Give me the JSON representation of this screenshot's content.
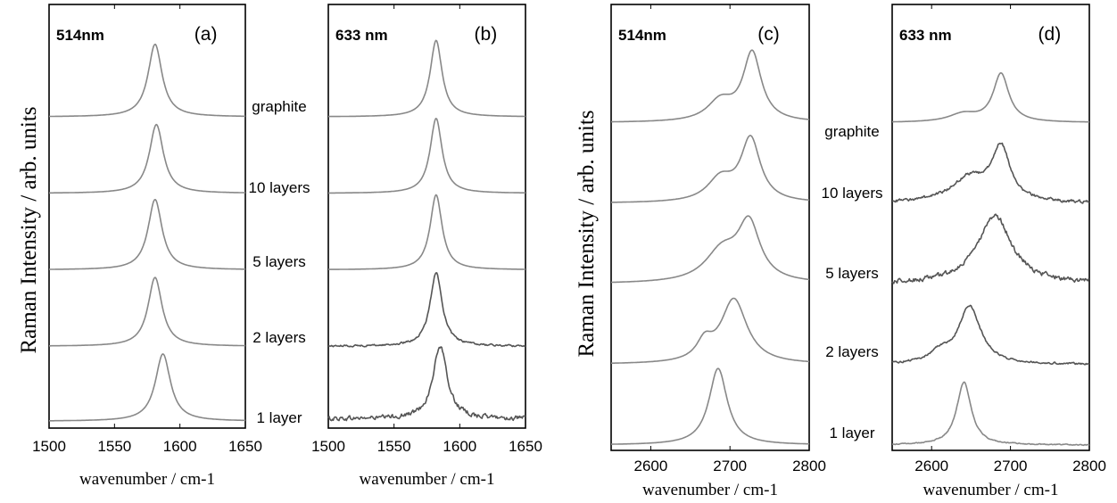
{
  "chart_data": [
    {
      "type": "line",
      "panel_label": "(a)",
      "laser": "514nm",
      "xlabel": "wavenumber / cm-1",
      "ylabel": "Raman Intensity / arb. units",
      "xlim": [
        1500,
        1650
      ],
      "xticks": [
        "1500",
        "1550",
        "1600",
        "1650"
      ],
      "ylim": [
        0,
        5.4
      ],
      "grid": false,
      "stack_offset": 1.0,
      "series": [
        {
          "name": "1 layer",
          "offset": 0,
          "peaks": [
            {
              "center": 1587,
              "height": 0.88,
              "width": 7
            }
          ],
          "baseline": 0.02,
          "noise": 0
        },
        {
          "name": "2 layers",
          "offset": 1,
          "peaks": [
            {
              "center": 1581,
              "height": 0.9,
              "width": 6.5
            }
          ],
          "baseline": 0.0,
          "noise": 0
        },
        {
          "name": "5 layers",
          "offset": 2,
          "peaks": [
            {
              "center": 1581,
              "height": 0.92,
              "width": 6.5
            }
          ],
          "baseline": 0.0,
          "noise": 0
        },
        {
          "name": "10 layers",
          "offset": 3,
          "peaks": [
            {
              "center": 1582,
              "height": 0.9,
              "width": 6.5
            }
          ],
          "baseline": 0.0,
          "noise": 0
        },
        {
          "name": "graphite",
          "offset": 4,
          "peaks": [
            {
              "center": 1581,
              "height": 0.95,
              "width": 6.5
            }
          ],
          "baseline": 0.0,
          "noise": 0
        }
      ]
    },
    {
      "type": "line",
      "panel_label": "(b)",
      "laser": "633 nm",
      "xlabel": "wavenumber / cm-1",
      "xlim": [
        1500,
        1650
      ],
      "xticks": [
        "1500",
        "1550",
        "1600",
        "1650"
      ],
      "ylim": [
        0,
        5.4
      ],
      "grid": false,
      "stack_offset": 1.0,
      "series": [
        {
          "name": "1 layer",
          "offset": 0,
          "peaks": [
            {
              "center": 1585,
              "height": 0.95,
              "width": 6.5
            }
          ],
          "baseline": 0.05,
          "noise": 0.05
        },
        {
          "name": "2 layers",
          "offset": 1,
          "peaks": [
            {
              "center": 1582,
              "height": 0.97,
              "width": 5.5
            }
          ],
          "baseline": 0.0,
          "noise": 0.02
        },
        {
          "name": "5 layers",
          "offset": 2,
          "peaks": [
            {
              "center": 1582,
              "height": 0.98,
              "width": 5.5
            }
          ],
          "baseline": 0.0,
          "noise": 0
        },
        {
          "name": "10 layers",
          "offset": 3,
          "peaks": [
            {
              "center": 1582,
              "height": 0.98,
              "width": 5.5
            }
          ],
          "baseline": 0.0,
          "noise": 0
        },
        {
          "name": "graphite",
          "offset": 4,
          "peaks": [
            {
              "center": 1582,
              "height": 1.0,
              "width": 5.5
            }
          ],
          "baseline": 0.0,
          "noise": 0
        }
      ]
    },
    {
      "type": "line",
      "panel_label": "(c)",
      "laser": "514nm",
      "xlabel": "wavenumber / cm-1",
      "ylabel": "Raman Intensity / arb. units",
      "xlim": [
        2550,
        2800
      ],
      "xticks": [
        "2600",
        "2700",
        "2800"
      ],
      "ylim": [
        0,
        5.4
      ],
      "grid": false,
      "stack_offset": 1.0,
      "series": [
        {
          "name": "1 layer",
          "offset": 0,
          "peaks": [
            {
              "center": 2685,
              "height": 0.95,
              "width": 14
            }
          ],
          "baseline": 0.0,
          "noise": 0
        },
        {
          "name": "2 layers",
          "offset": 1,
          "peaks": [
            {
              "center": 2705,
              "height": 0.8,
              "width": 20
            },
            {
              "center": 2668,
              "height": 0.22,
              "width": 12
            }
          ],
          "baseline": 0.0,
          "noise": 0
        },
        {
          "name": "5 layers",
          "offset": 2,
          "peaks": [
            {
              "center": 2724,
              "height": 0.7,
              "width": 17
            },
            {
              "center": 2690,
              "height": 0.38,
              "width": 26
            }
          ],
          "baseline": 0.0,
          "noise": 0
        },
        {
          "name": "10 layers",
          "offset": 3,
          "peaks": [
            {
              "center": 2726,
              "height": 0.78,
              "width": 15
            },
            {
              "center": 2688,
              "height": 0.28,
              "width": 20
            }
          ],
          "baseline": 0.0,
          "noise": 0
        },
        {
          "name": "graphite",
          "offset": 4,
          "peaks": [
            {
              "center": 2728,
              "height": 0.85,
              "width": 14
            },
            {
              "center": 2688,
              "height": 0.25,
              "width": 20
            }
          ],
          "baseline": 0.0,
          "noise": 0
        }
      ]
    },
    {
      "type": "line",
      "panel_label": "(d)",
      "laser": "633 nm",
      "xlabel": "wavenumber / cm-1",
      "xlim": [
        2550,
        2800
      ],
      "xticks": [
        "2600",
        "2700",
        "2800"
      ],
      "ylim": [
        0,
        5.4
      ],
      "grid": false,
      "stack_offset": 1.0,
      "series": [
        {
          "name": "1 layer",
          "offset": 0,
          "peaks": [
            {
              "center": 2641,
              "height": 0.78,
              "width": 11
            }
          ],
          "baseline": 0.0,
          "noise": 0.01
        },
        {
          "name": "2 layers",
          "offset": 1,
          "peaks": [
            {
              "center": 2648,
              "height": 0.72,
              "width": 17
            },
            {
              "center": 2610,
              "height": 0.12,
              "width": 14
            }
          ],
          "baseline": 0.0,
          "noise": 0.02
        },
        {
          "name": "5 layers",
          "offset": 2,
          "peaks": [
            {
              "center": 2680,
              "height": 0.85,
              "width": 26
            }
          ],
          "baseline": 0.0,
          "noise": 0.05
        },
        {
          "name": "10 layers",
          "offset": 3,
          "peaks": [
            {
              "center": 2688,
              "height": 0.65,
              "width": 14
            },
            {
              "center": 2648,
              "height": 0.3,
              "width": 28
            }
          ],
          "baseline": 0.0,
          "noise": 0.03
        },
        {
          "name": "graphite",
          "offset": 4,
          "peaks": [
            {
              "center": 2688,
              "height": 0.6,
              "width": 12
            },
            {
              "center": 2640,
              "height": 0.1,
              "width": 22
            }
          ],
          "baseline": 0.0,
          "noise": 0
        }
      ]
    }
  ],
  "colors": {
    "line": "#888888",
    "noisy_line": "#555555",
    "frame": "#000000",
    "text": "#000000"
  }
}
